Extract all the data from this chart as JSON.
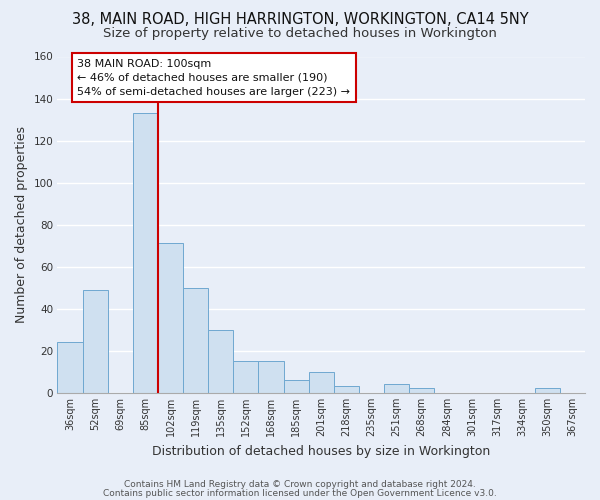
{
  "title": "38, MAIN ROAD, HIGH HARRINGTON, WORKINGTON, CA14 5NY",
  "subtitle": "Size of property relative to detached houses in Workington",
  "xlabel": "Distribution of detached houses by size in Workington",
  "ylabel": "Number of detached properties",
  "categories": [
    "36sqm",
    "52sqm",
    "69sqm",
    "85sqm",
    "102sqm",
    "119sqm",
    "135sqm",
    "152sqm",
    "168sqm",
    "185sqm",
    "201sqm",
    "218sqm",
    "235sqm",
    "251sqm",
    "268sqm",
    "284sqm",
    "301sqm",
    "317sqm",
    "334sqm",
    "350sqm",
    "367sqm"
  ],
  "values": [
    24,
    49,
    0,
    133,
    71,
    50,
    30,
    15,
    15,
    6,
    10,
    3,
    0,
    4,
    2,
    0,
    0,
    0,
    0,
    2,
    0
  ],
  "bar_color": "#cfe0f0",
  "bar_edge_color": "#6fa8d0",
  "vline_color": "#cc0000",
  "vline_x_index": 3.5,
  "annotation_lines": [
    "38 MAIN ROAD: 100sqm",
    "← 46% of detached houses are smaller (190)",
    "54% of semi-detached houses are larger (223) →"
  ],
  "annotation_box_color": "#ffffff",
  "annotation_box_edge": "#cc0000",
  "ylim": [
    0,
    160
  ],
  "yticks": [
    0,
    20,
    40,
    60,
    80,
    100,
    120,
    140,
    160
  ],
  "footnote1": "Contains HM Land Registry data © Crown copyright and database right 2024.",
  "footnote2": "Contains public sector information licensed under the Open Government Licence v3.0.",
  "bg_color": "#e8eef8",
  "plot_bg_color": "#e8eef8",
  "grid_color": "#ffffff",
  "title_fontsize": 10.5,
  "subtitle_fontsize": 9.5,
  "axis_label_fontsize": 9,
  "tick_fontsize": 7,
  "annot_fontsize": 8,
  "footnote_fontsize": 6.5
}
